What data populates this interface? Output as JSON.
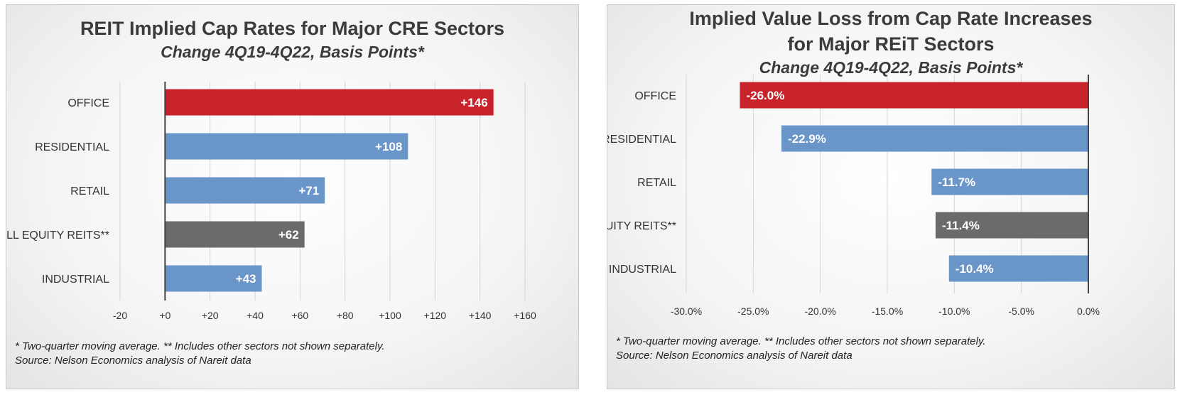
{
  "chart_data": [
    {
      "type": "bar",
      "orientation": "horizontal",
      "title": "REIT Implied Cap Rates for Major CRE Sectors",
      "subtitle": "Change 4Q19-4Q22, Basis Points*",
      "categories": [
        "OFFICE",
        "RESIDENTIAL",
        "RETAIL",
        "ALL EQUITY REITS**",
        "INDUSTRIAL"
      ],
      "values": [
        146,
        108,
        71,
        62,
        43
      ],
      "data_labels": [
        "+146",
        "+108",
        "+71",
        "+62",
        "+43"
      ],
      "bar_colors": [
        "#c8232a",
        "#6a95c9",
        "#6a95c9",
        "#6b6b6b",
        "#6a95c9"
      ],
      "xlim": [
        -20,
        160
      ],
      "xticks": [
        -20,
        0,
        20,
        40,
        60,
        80,
        100,
        120,
        140,
        160
      ],
      "xtick_labels": [
        "-20",
        "+0",
        "+20",
        "+40",
        "+60",
        "+80",
        "+100",
        "+120",
        "+140",
        "+160"
      ],
      "grid": true,
      "footnote_1": "* Two-quarter moving average. ** Includes other sectors not shown separately.",
      "footnote_2": "Source: Nelson Economics analysis of Nareit data"
    },
    {
      "type": "bar",
      "orientation": "horizontal",
      "title_line_1": "Implied Value Loss from Cap Rate Increases",
      "title_line_2": "for Major REiT Sectors",
      "subtitle": "Change 4Q19-4Q22, Basis Points*",
      "categories": [
        "OFFICE",
        "RESIDENTIAL",
        "RETAIL",
        "ALL EQUITY REITS**",
        "INDUSTRIAL"
      ],
      "values": [
        -26.0,
        -22.9,
        -11.7,
        -11.4,
        -10.4
      ],
      "data_labels": [
        "-26.0%",
        "-22.9%",
        "-11.7%",
        "-11.4%",
        "-10.4%"
      ],
      "bar_colors": [
        "#c8232a",
        "#6a95c9",
        "#6a95c9",
        "#6b6b6b",
        "#6a95c9"
      ],
      "xlim": [
        -30,
        0
      ],
      "xticks": [
        -30,
        -25,
        -20,
        -15,
        -10,
        -5,
        0
      ],
      "xtick_labels": [
        "-30.0%",
        "-25.0%",
        "-20.0%",
        "-15.0%",
        "-10.0%",
        "-5.0%",
        "0.0%"
      ],
      "grid": true,
      "footnote_1": "* Two-quarter moving average. ** Includes other sectors not shown separately.",
      "footnote_2": "Source: Nelson Economics analysis of Nareit data"
    }
  ]
}
